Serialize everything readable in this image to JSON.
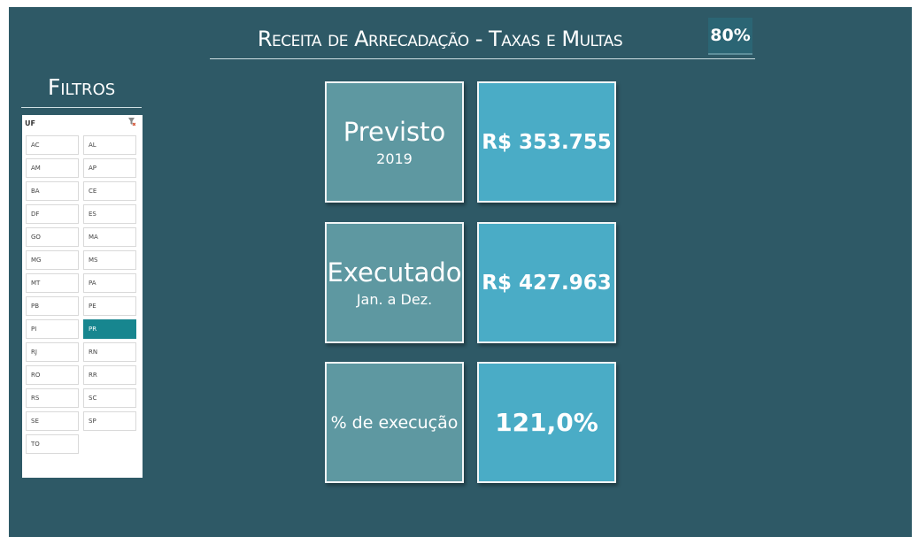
{
  "header": {
    "title": "Receita de Arrecadação - Taxas e Multas",
    "zoom": "80%"
  },
  "filters": {
    "title": "Filtros",
    "slicer": {
      "header": "UF",
      "selected": "PR",
      "items": [
        "AC",
        "AL",
        "AM",
        "AP",
        "BA",
        "CE",
        "DF",
        "ES",
        "GO",
        "MA",
        "MG",
        "MS",
        "MT",
        "PA",
        "PB",
        "PE",
        "PI",
        "PR",
        "RJ",
        "RN",
        "RO",
        "RR",
        "RS",
        "SC",
        "SE",
        "SP",
        "TO"
      ]
    }
  },
  "cards": [
    {
      "label": "Previsto",
      "sublabel": "2019",
      "value": "R$ 353.755"
    },
    {
      "label": "Executado",
      "sublabel": "Jan. a Dez.",
      "value": "R$ 427.963"
    },
    {
      "label": "% de execução",
      "value": "121,0%"
    }
  ]
}
